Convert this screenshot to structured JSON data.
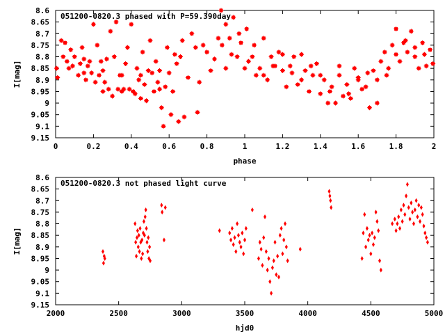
{
  "chart_data": [
    {
      "type": "scatter",
      "title": "051200-0820.3 phased with P=59.390day",
      "xlabel": "phase",
      "ylabel": "I[mag]",
      "xlim": [
        0,
        2
      ],
      "ylim": [
        8.6,
        9.15
      ],
      "y_inverted": true,
      "x_ticks": [
        "0",
        "0.2",
        "0.4",
        "0.6",
        "0.8",
        "1",
        "1.2",
        "1.4",
        "1.6",
        "1.8",
        "2"
      ],
      "y_ticks": [
        "8.6",
        "8.65",
        "8.7",
        "8.75",
        "8.8",
        "8.85",
        "8.9",
        "8.95",
        "9",
        "9.05",
        "9.1",
        "9.15"
      ],
      "marker_color": "#ff0000",
      "grid": false,
      "points": [
        [
          0.005,
          8.85
        ],
        [
          0.01,
          8.89
        ],
        [
          0.03,
          8.73
        ],
        [
          0.04,
          8.8
        ],
        [
          0.05,
          8.74
        ],
        [
          0.06,
          8.82
        ],
        [
          0.07,
          8.85
        ],
        [
          0.08,
          8.77
        ],
        [
          0.09,
          8.84
        ],
        [
          0.1,
          8.8
        ],
        [
          0.12,
          8.88
        ],
        [
          0.13,
          8.83
        ],
        [
          0.14,
          8.76
        ],
        [
          0.15,
          8.87
        ],
        [
          0.16,
          8.9
        ],
        [
          0.17,
          8.84
        ],
        [
          0.18,
          8.82
        ],
        [
          0.19,
          8.87
        ],
        [
          0.2,
          8.66
        ],
        [
          0.21,
          8.91
        ],
        [
          0.22,
          8.75
        ],
        [
          0.23,
          8.88
        ],
        [
          0.24,
          8.82
        ],
        [
          0.25,
          8.86
        ],
        [
          0.26,
          8.91
        ],
        [
          0.27,
          8.81
        ],
        [
          0.28,
          8.94
        ],
        [
          0.29,
          8.69
        ],
        [
          0.3,
          8.97
        ],
        [
          0.31,
          8.8
        ],
        [
          0.32,
          8.65
        ],
        [
          0.33,
          8.94
        ],
        [
          0.34,
          8.88
        ],
        [
          0.35,
          8.95
        ],
        [
          0.36,
          8.94
        ],
        [
          0.37,
          8.83
        ],
        [
          0.38,
          8.76
        ],
        [
          0.39,
          8.94
        ],
        [
          0.4,
          8.66
        ],
        [
          0.41,
          8.95
        ],
        [
          0.42,
          8.96
        ],
        [
          0.43,
          8.85
        ],
        [
          0.44,
          8.9
        ],
        [
          0.45,
          8.98
        ],
        [
          0.46,
          8.78
        ],
        [
          0.47,
          8.92
        ],
        [
          0.48,
          8.99
        ],
        [
          0.49,
          8.86
        ],
        [
          0.5,
          8.73
        ],
        [
          0.51,
          8.87
        ],
        [
          0.52,
          8.95
        ],
        [
          0.53,
          8.82
        ],
        [
          0.54,
          8.91
        ],
        [
          0.55,
          8.86
        ],
        [
          0.56,
          9.02
        ],
        [
          0.57,
          9.1
        ],
        [
          0.58,
          8.93
        ],
        [
          0.59,
          8.76
        ],
        [
          0.6,
          8.87
        ],
        [
          0.61,
          9.05
        ],
        [
          0.62,
          8.95
        ],
        [
          0.63,
          8.79
        ],
        [
          0.64,
          8.83
        ],
        [
          0.65,
          9.08
        ],
        [
          0.66,
          8.8
        ],
        [
          0.67,
          8.73
        ],
        [
          0.68,
          9.06
        ],
        [
          0.7,
          8.89
        ],
        [
          0.72,
          8.7
        ],
        [
          0.74,
          8.76
        ],
        [
          0.76,
          8.91
        ],
        [
          0.78,
          8.75
        ],
        [
          0.8,
          8.78
        ],
        [
          0.82,
          8.86
        ],
        [
          0.84,
          8.81
        ],
        [
          0.86,
          8.72
        ],
        [
          0.88,
          8.75
        ],
        [
          0.9,
          8.85
        ],
        [
          0.92,
          8.72
        ],
        [
          0.94,
          8.63
        ],
        [
          0.96,
          8.8
        ],
        [
          0.98,
          8.74
        ],
        [
          1.0,
          8.85
        ],
        [
          1.02,
          8.82
        ],
        [
          1.04,
          8.8
        ],
        [
          1.06,
          8.88
        ],
        [
          1.08,
          8.85
        ],
        [
          1.1,
          8.88
        ],
        [
          1.12,
          8.9
        ],
        [
          1.14,
          8.8
        ],
        [
          1.16,
          8.84
        ],
        [
          1.18,
          8.78
        ],
        [
          1.2,
          8.86
        ],
        [
          1.22,
          8.93
        ],
        [
          1.24,
          8.84
        ],
        [
          1.26,
          8.8
        ],
        [
          1.28,
          8.92
        ],
        [
          1.3,
          8.9
        ],
        [
          1.32,
          8.86
        ],
        [
          1.34,
          8.95
        ],
        [
          1.36,
          8.88
        ],
        [
          1.38,
          8.83
        ],
        [
          1.4,
          8.96
        ],
        [
          1.42,
          8.9
        ],
        [
          1.44,
          9.0
        ],
        [
          1.46,
          8.93
        ],
        [
          1.48,
          9.0
        ],
        [
          1.5,
          8.88
        ],
        [
          1.52,
          8.97
        ],
        [
          1.54,
          8.92
        ],
        [
          1.56,
          8.98
        ],
        [
          1.58,
          8.85
        ],
        [
          1.6,
          8.9
        ],
        [
          1.62,
          8.94
        ],
        [
          1.64,
          8.93
        ],
        [
          1.66,
          9.02
        ],
        [
          1.68,
          8.86
        ],
        [
          1.7,
          8.9
        ],
        [
          1.72,
          8.82
        ],
        [
          1.74,
          8.78
        ],
        [
          1.76,
          8.85
        ],
        [
          1.78,
          8.75
        ],
        [
          1.8,
          8.68
        ],
        [
          1.82,
          8.82
        ],
        [
          1.84,
          8.74
        ],
        [
          1.86,
          8.78
        ],
        [
          1.88,
          8.69
        ],
        [
          1.9,
          8.8
        ],
        [
          1.92,
          8.85
        ],
        [
          1.94,
          8.74
        ],
        [
          1.96,
          8.84
        ],
        [
          1.98,
          8.77
        ],
        [
          1.995,
          8.83
        ],
        [
          0.875,
          8.6
        ],
        [
          0.9,
          8.66
        ],
        [
          0.93,
          8.79
        ],
        [
          0.97,
          8.7
        ],
        [
          1.01,
          8.68
        ],
        [
          1.05,
          8.75
        ],
        [
          1.1,
          8.72
        ],
        [
          1.15,
          8.84
        ],
        [
          1.2,
          8.79
        ],
        [
          1.25,
          8.87
        ],
        [
          1.3,
          8.79
        ],
        [
          1.35,
          8.84
        ],
        [
          1.4,
          8.88
        ],
        [
          1.45,
          8.95
        ],
        [
          1.5,
          8.84
        ],
        [
          1.55,
          8.96
        ],
        [
          1.6,
          8.89
        ],
        [
          1.65,
          8.87
        ],
        [
          1.7,
          9.0
        ],
        [
          1.75,
          8.88
        ],
        [
          1.8,
          8.79
        ],
        [
          1.85,
          8.73
        ],
        [
          1.9,
          8.76
        ],
        [
          1.95,
          8.79
        ],
        [
          0.15,
          8.81
        ],
        [
          0.35,
          8.88
        ],
        [
          0.45,
          8.88
        ],
        [
          0.55,
          8.94
        ],
        [
          0.75,
          9.04
        ],
        [
          0.25,
          8.95
        ]
      ]
    },
    {
      "type": "scatter",
      "title": "051200-0820.3 not phased light curve",
      "xlabel": "hjd0",
      "ylabel": "I[mag]",
      "xlim": [
        2000,
        5000
      ],
      "ylim": [
        8.6,
        9.15
      ],
      "y_inverted": true,
      "x_ticks": [
        "2000",
        "2500",
        "3000",
        "3500",
        "4000",
        "4500",
        "5000"
      ],
      "y_ticks": [
        "8.6",
        "8.65",
        "8.7",
        "8.75",
        "8.8",
        "8.85",
        "8.9",
        "8.95",
        "9",
        "9.05",
        "9.1",
        "9.15"
      ],
      "marker_color": "#ff0000",
      "grid": false,
      "points": [
        [
          2375,
          8.92
        ],
        [
          2380,
          8.97
        ],
        [
          2385,
          8.94
        ],
        [
          2390,
          8.95
        ],
        [
          2630,
          8.8
        ],
        [
          2635,
          8.88
        ],
        [
          2640,
          8.94
        ],
        [
          2645,
          8.86
        ],
        [
          2650,
          8.83
        ],
        [
          2655,
          8.9
        ],
        [
          2660,
          8.85
        ],
        [
          2665,
          8.92
        ],
        [
          2670,
          8.82
        ],
        [
          2675,
          8.88
        ],
        [
          2680,
          8.95
        ],
        [
          2685,
          8.87
        ],
        [
          2690,
          8.93
        ],
        [
          2695,
          8.84
        ],
        [
          2700,
          8.79
        ],
        [
          2705,
          8.85
        ],
        [
          2710,
          8.77
        ],
        [
          2715,
          8.74
        ],
        [
          2720,
          8.82
        ],
        [
          2725,
          8.88
        ],
        [
          2730,
          8.92
        ],
        [
          2735,
          8.86
        ],
        [
          2740,
          8.95
        ],
        [
          2745,
          8.9
        ],
        [
          2750,
          8.96
        ],
        [
          2840,
          8.72
        ],
        [
          2845,
          8.75
        ],
        [
          2860,
          8.87
        ],
        [
          2870,
          8.73
        ],
        [
          3300,
          8.83
        ],
        [
          3380,
          8.84
        ],
        [
          3390,
          8.87
        ],
        [
          3400,
          8.82
        ],
        [
          3410,
          8.89
        ],
        [
          3420,
          8.86
        ],
        [
          3430,
          8.92
        ],
        [
          3440,
          8.8
        ],
        [
          3450,
          8.85
        ],
        [
          3460,
          8.88
        ],
        [
          3470,
          8.9
        ],
        [
          3480,
          8.84
        ],
        [
          3490,
          8.93
        ],
        [
          3500,
          8.87
        ],
        [
          3510,
          8.82
        ],
        [
          3560,
          8.74
        ],
        [
          3610,
          8.95
        ],
        [
          3620,
          8.88
        ],
        [
          3630,
          8.91
        ],
        [
          3640,
          8.98
        ],
        [
          3650,
          8.86
        ],
        [
          3660,
          8.77
        ],
        [
          3670,
          8.92
        ],
        [
          3680,
          9.0
        ],
        [
          3690,
          8.95
        ],
        [
          3700,
          9.05
        ],
        [
          3710,
          9.1
        ],
        [
          3720,
          8.99
        ],
        [
          3730,
          8.96
        ],
        [
          3740,
          8.88
        ],
        [
          3750,
          9.02
        ],
        [
          3760,
          8.94
        ],
        [
          3770,
          9.03
        ],
        [
          3780,
          8.85
        ],
        [
          3790,
          8.82
        ],
        [
          3800,
          8.93
        ],
        [
          3810,
          8.87
        ],
        [
          3820,
          8.8
        ],
        [
          3830,
          8.9
        ],
        [
          3840,
          8.96
        ],
        [
          3940,
          8.91
        ],
        [
          4170,
          8.66
        ],
        [
          4175,
          8.68
        ],
        [
          4180,
          8.7
        ],
        [
          4185,
          8.73
        ],
        [
          4430,
          8.95
        ],
        [
          4440,
          8.84
        ],
        [
          4450,
          8.76
        ],
        [
          4460,
          8.9
        ],
        [
          4470,
          8.82
        ],
        [
          4480,
          8.87
        ],
        [
          4490,
          8.85
        ],
        [
          4500,
          8.93
        ],
        [
          4510,
          8.84
        ],
        [
          4520,
          8.89
        ],
        [
          4530,
          8.86
        ],
        [
          4540,
          8.75
        ],
        [
          4550,
          8.79
        ],
        [
          4560,
          8.83
        ],
        [
          4570,
          8.96
        ],
        [
          4580,
          9.0
        ],
        [
          4670,
          8.8
        ],
        [
          4690,
          8.78
        ],
        [
          4700,
          8.83
        ],
        [
          4710,
          8.8
        ],
        [
          4720,
          8.77
        ],
        [
          4730,
          8.82
        ],
        [
          4740,
          8.74
        ],
        [
          4750,
          8.79
        ],
        [
          4760,
          8.72
        ],
        [
          4770,
          8.76
        ],
        [
          4780,
          8.68
        ],
        [
          4790,
          8.63
        ],
        [
          4800,
          8.73
        ],
        [
          4810,
          8.78
        ],
        [
          4820,
          8.71
        ],
        [
          4830,
          8.75
        ],
        [
          4840,
          8.8
        ],
        [
          4850,
          8.74
        ],
        [
          4860,
          8.7
        ],
        [
          4870,
          8.77
        ],
        [
          4880,
          8.72
        ],
        [
          4890,
          8.79
        ],
        [
          4900,
          8.73
        ],
        [
          4910,
          8.76
        ],
        [
          4920,
          8.81
        ],
        [
          4930,
          8.84
        ],
        [
          4940,
          8.86
        ],
        [
          4950,
          8.88
        ]
      ]
    }
  ]
}
